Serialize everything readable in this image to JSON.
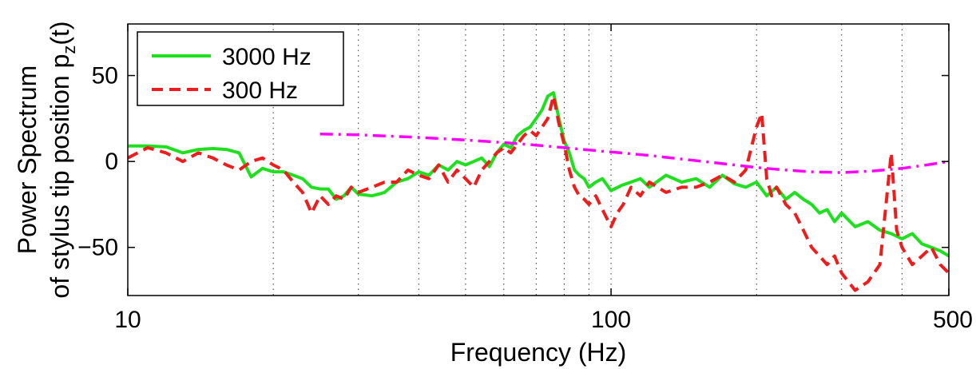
{
  "chart_data": {
    "type": "line",
    "title": "",
    "xlabel": "Frequency (Hz)",
    "ylabel": {
      "line1": "Power Spectrum",
      "line2_prefix": "of stylus tip position p",
      "line2_sub": "z",
      "line2_suffix": "(t)"
    },
    "x_scale": "log",
    "xlim": [
      10,
      500
    ],
    "ylim": [
      -78,
      80
    ],
    "grid": "x-major-and-minor-dotted",
    "xticks": [
      {
        "value": 10,
        "label": "10"
      },
      {
        "value": 100,
        "label": "100"
      },
      {
        "value": 500,
        "label": "500"
      }
    ],
    "yticks": [
      {
        "value": -50,
        "label": "−50"
      },
      {
        "value": 0,
        "label": "0"
      },
      {
        "value": 50,
        "label": "50"
      }
    ],
    "legend_position": "top-left",
    "series": [
      {
        "name": "3000 Hz",
        "color": "#1ee01e",
        "style": "solid",
        "x": [
          10,
          11,
          12,
          13,
          14,
          15,
          16,
          17,
          18,
          19,
          20,
          21,
          22,
          23,
          24,
          25,
          26,
          27,
          28,
          29,
          30,
          32,
          34,
          36,
          38,
          40,
          42,
          44,
          46,
          48,
          50,
          52,
          54,
          56,
          58,
          60,
          62,
          64,
          66,
          68,
          70,
          72,
          74,
          76,
          78,
          80,
          82,
          84,
          86,
          88,
          90,
          93,
          96,
          100,
          105,
          110,
          115,
          120,
          130,
          140,
          150,
          160,
          170,
          180,
          190,
          200,
          210,
          220,
          230,
          240,
          250,
          260,
          270,
          280,
          290,
          300,
          320,
          340,
          360,
          380,
          400,
          420,
          440,
          460,
          480,
          500
        ],
        "y": [
          9,
          9,
          8.5,
          5,
          7,
          7.5,
          7,
          5,
          -9,
          -4,
          -6,
          -6,
          -8,
          -10,
          -15,
          -16,
          -16,
          -22,
          -20,
          -15,
          -19,
          -20,
          -18,
          -12,
          -10,
          -6,
          -8,
          -2,
          -5,
          0,
          -2,
          0,
          2,
          -3,
          5,
          10,
          8,
          15,
          18,
          20,
          25,
          30,
          38,
          40,
          25,
          12,
          5,
          -5,
          -8,
          -10,
          -15,
          -12,
          -10,
          -17,
          -14,
          -12,
          -10,
          -15,
          -8,
          -12,
          -10,
          -15,
          -8,
          -13,
          -15,
          -12,
          -20,
          -15,
          -22,
          -18,
          -22,
          -25,
          -30,
          -28,
          -35,
          -30,
          -38,
          -35,
          -40,
          -42,
          -45,
          -42,
          -48,
          -50,
          -52,
          -55
        ]
      },
      {
        "name": "300 Hz",
        "color": "#ee1c1c",
        "style": "dashed",
        "x": [
          10,
          11,
          12,
          13,
          14,
          15,
          16,
          17,
          18,
          19,
          20,
          21,
          22,
          23,
          24,
          25,
          26,
          27,
          28,
          29,
          30,
          32,
          34,
          36,
          38,
          40,
          42,
          44,
          46,
          48,
          50,
          52,
          54,
          56,
          58,
          60,
          62,
          64,
          66,
          68,
          70,
          72,
          74,
          76,
          78,
          80,
          82,
          84,
          86,
          88,
          90,
          93,
          96,
          100,
          103,
          106,
          110,
          115,
          120,
          130,
          140,
          150,
          160,
          170,
          180,
          190,
          200,
          205,
          210,
          215,
          220,
          230,
          240,
          250,
          260,
          270,
          280,
          290,
          300,
          320,
          340,
          360,
          380,
          390,
          400,
          420,
          440,
          460,
          480,
          500
        ],
        "y": [
          2,
          8,
          5,
          0,
          5,
          2,
          -2,
          -5,
          0,
          2,
          -2,
          -5,
          -12,
          -18,
          -30,
          -20,
          -25,
          -20,
          -22,
          -15,
          -18,
          -15,
          -12,
          -12,
          -5,
          -8,
          -10,
          -2,
          -12,
          -5,
          -10,
          -15,
          -5,
          0,
          5,
          8,
          5,
          10,
          15,
          18,
          15,
          20,
          25,
          38,
          22,
          10,
          -5,
          -15,
          -20,
          -22,
          -25,
          -20,
          -28,
          -38,
          -30,
          -25,
          -15,
          -20,
          -12,
          -18,
          -15,
          -15,
          -12,
          -8,
          -12,
          -5,
          20,
          28,
          -10,
          -20,
          -15,
          -25,
          -30,
          -40,
          -50,
          -55,
          -60,
          -55,
          -65,
          -75,
          -70,
          -60,
          5,
          -40,
          -50,
          -60,
          -55,
          -50,
          -60,
          -65
        ]
      },
      {
        "name": "",
        "color": "#ff00ff",
        "style": "dash-dot",
        "x": [
          25,
          30,
          40,
          50,
          60,
          70,
          80,
          100,
          120,
          150,
          180,
          200,
          230,
          260,
          300,
          350,
          400,
          450,
          500
        ],
        "y": [
          16,
          15.5,
          14,
          12.5,
          11,
          9.5,
          8,
          5.5,
          3.5,
          0.5,
          -2,
          -3.5,
          -5,
          -6,
          -6.5,
          -5.5,
          -4,
          -2,
          0
        ]
      }
    ]
  }
}
